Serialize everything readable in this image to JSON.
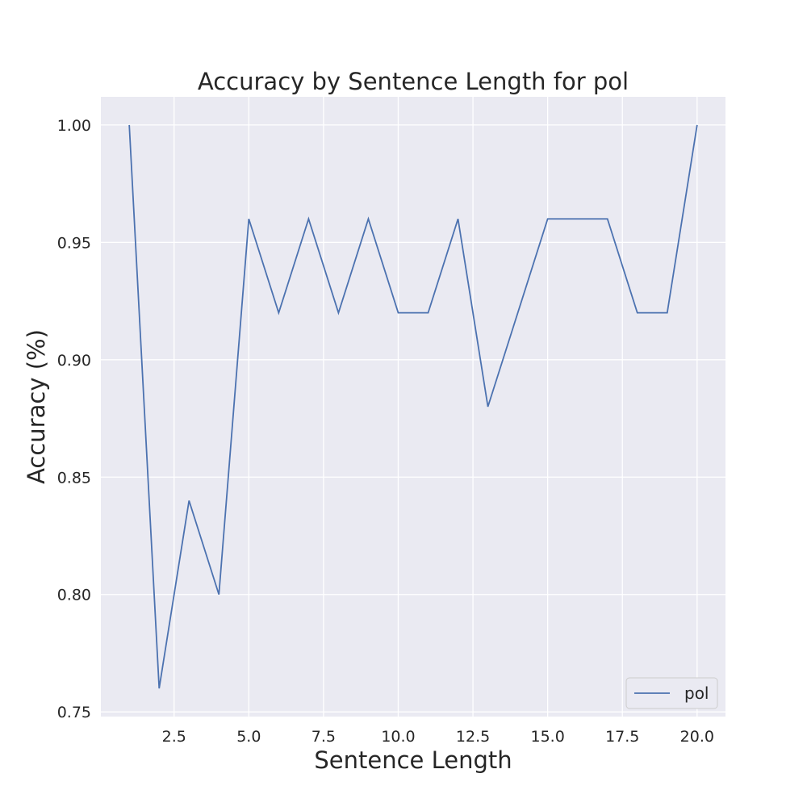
{
  "chart_data": {
    "type": "line",
    "title": "Accuracy by Sentence Length for pol",
    "xlabel": "Sentence Length",
    "ylabel": "Accuracy (%)",
    "xlim": [
      0.05,
      20.95
    ],
    "ylim": [
      0.748,
      1.012
    ],
    "xticks": [
      2.5,
      5.0,
      7.5,
      10.0,
      12.5,
      15.0,
      17.5,
      20.0
    ],
    "xtick_labels": [
      "2.5",
      "5.0",
      "7.5",
      "10.0",
      "12.5",
      "15.0",
      "17.5",
      "20.0"
    ],
    "yticks": [
      0.75,
      0.8,
      0.85,
      0.9,
      0.95,
      1.0
    ],
    "ytick_labels": [
      "0.75",
      "0.80",
      "0.85",
      "0.90",
      "0.95",
      "1.00"
    ],
    "grid": true,
    "legend_position": "bottom-right",
    "series": [
      {
        "name": "pol",
        "color": "#4c72b0",
        "x": [
          1,
          2,
          3,
          4,
          5,
          6,
          7,
          8,
          9,
          10,
          11,
          12,
          13,
          14,
          15,
          16,
          17,
          18,
          19,
          20
        ],
        "y": [
          1.0,
          0.76,
          0.84,
          0.8,
          0.96,
          0.92,
          0.96,
          0.92,
          0.96,
          0.92,
          0.92,
          0.96,
          0.88,
          0.92,
          0.96,
          0.96,
          0.96,
          0.92,
          0.92,
          1.0
        ]
      }
    ]
  },
  "colors": {
    "plot_background": "#eaeaf2",
    "grid": "#ffffff",
    "legend_background": "#eaeaf2",
    "legend_border": "#cccccc"
  }
}
